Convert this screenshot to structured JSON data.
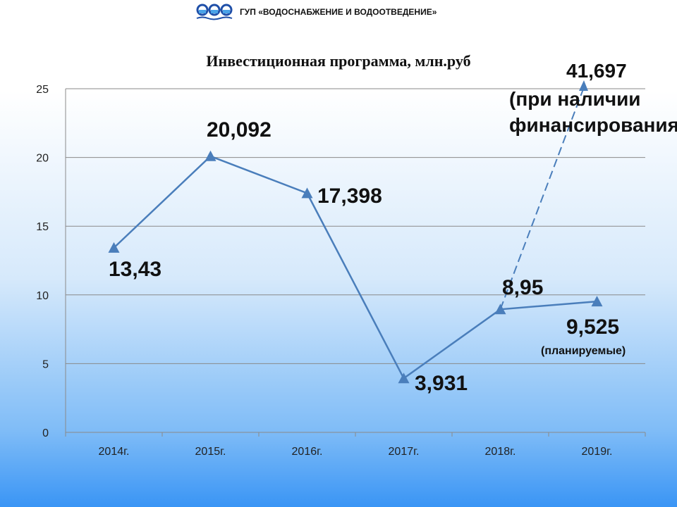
{
  "header": {
    "logo": "three-water-circles-logo",
    "organization": "ГУП «ВОДОСНАБЖЕНИЕ И ВОДООТВЕДЕНИЕ»"
  },
  "chart_data": {
    "type": "line",
    "title": "Инвестиционная программа, млн.руб",
    "categories": [
      "2014г.",
      "2015г.",
      "2016г.",
      "2017г.",
      "2018г.",
      "2019г."
    ],
    "series": [
      {
        "values": [
          13.43,
          20.092,
          17.398,
          3.931,
          8.95,
          9.525
        ],
        "color": "#4a7ebb",
        "marker": "triangle"
      }
    ],
    "data_labels": [
      "13,43",
      "20,092",
      "17,398",
      "3,931",
      "8,95",
      "9,525"
    ],
    "annotations": {
      "planned_note": "(планируемые)",
      "alt_value": 41.697,
      "alt_value_label": "41,697",
      "alt_note_line1": "(при наличии",
      "alt_note_line2": "финансирования)",
      "alt_line_style": "dashed-arrow from 2018г. toward 2019г."
    },
    "yticks": [
      "0",
      "5",
      "10",
      "15",
      "20",
      "25"
    ],
    "ylim": [
      0,
      25
    ],
    "grid": true,
    "xlabel": "",
    "ylabel": ""
  }
}
